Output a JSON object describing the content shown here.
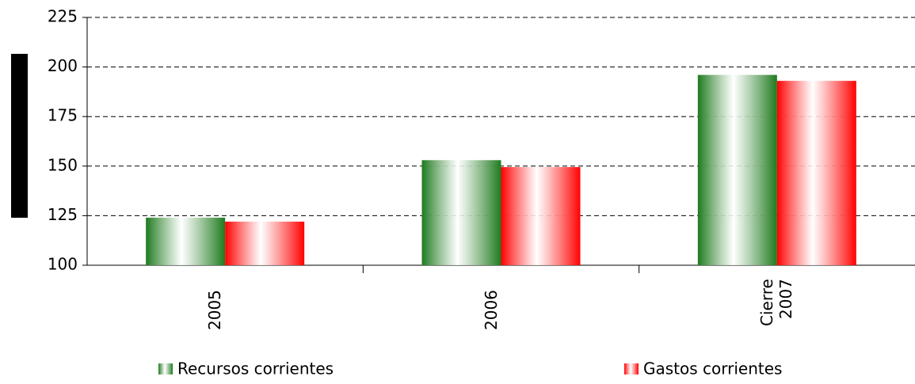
{
  "chart_data": {
    "type": "bar",
    "categories": [
      "2005",
      "2006",
      "Cierre 2007"
    ],
    "series": [
      {
        "name": "Recursos corrientes",
        "color": "#1e7a1e",
        "values": [
          124,
          153,
          196
        ]
      },
      {
        "name": "Gastos corrientes",
        "color": "#ff0000",
        "values": [
          122,
          149.5,
          193
        ]
      }
    ],
    "ylim": [
      100,
      225
    ],
    "yticks": [
      100,
      125,
      150,
      175,
      200,
      225
    ],
    "grid": true
  }
}
